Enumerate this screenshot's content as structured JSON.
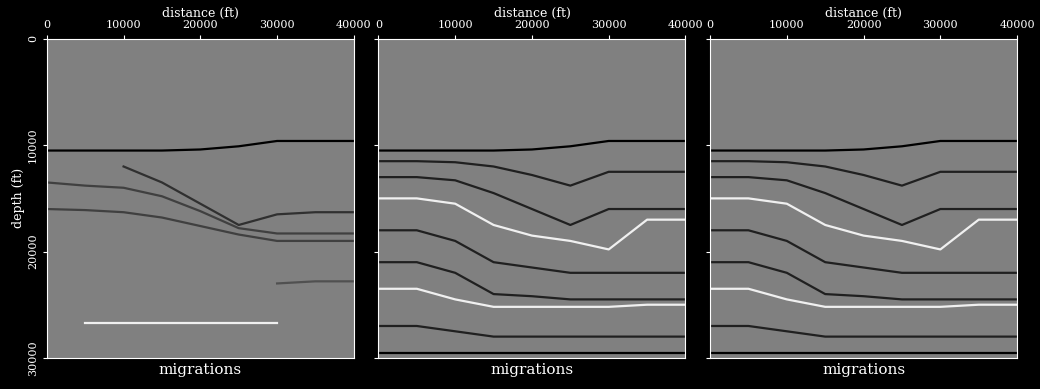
{
  "chart_data": [
    {
      "type": "line",
      "xlabel": "distance (ft)",
      "ylabel": "depth (ft)",
      "annotations": [
        "migrations"
      ],
      "x": [
        0,
        5000,
        10000,
        15000,
        20000,
        25000,
        30000,
        35000,
        40000
      ],
      "xlim": [
        0,
        40000
      ],
      "xticks": [
        0,
        10000,
        20000,
        30000,
        40000
      ],
      "ylim": [
        30000,
        0
      ],
      "yticks": [
        0,
        10000,
        20000,
        30000
      ],
      "series": [
        {
          "color": "#000000",
          "values": [
            10500,
            10500,
            10500,
            10500,
            10400,
            10100,
            9600,
            9600,
            9600
          ]
        },
        {
          "color": "#303030",
          "values": [
            null,
            null,
            12000,
            13500,
            15500,
            17500,
            16500,
            16300,
            16300
          ]
        },
        {
          "color": "#404040",
          "values": [
            13500,
            13800,
            14000,
            14800,
            16200,
            17800,
            18300,
            18300,
            18300
          ]
        },
        {
          "color": "#404040",
          "values": [
            16000,
            16100,
            16300,
            16800,
            17600,
            18400,
            19000,
            19000,
            19000
          ]
        },
        {
          "color": "#505050",
          "values": [
            null,
            null,
            null,
            null,
            null,
            null,
            23000,
            22800,
            22800
          ]
        },
        {
          "color": "#f0f0f0",
          "values": [
            null,
            26700,
            26700,
            26700,
            26700,
            26700,
            26700,
            null,
            null
          ]
        }
      ]
    },
    {
      "type": "line",
      "xlabel": "distance (ft)",
      "annotations": [
        "migrations"
      ],
      "tick_labels": "x",
      "x": [
        0,
        5000,
        10000,
        15000,
        20000,
        25000,
        30000,
        35000,
        40000
      ],
      "xlim": [
        0,
        40000
      ],
      "xticks": [
        0,
        10000,
        20000,
        30000,
        40000
      ],
      "ylim": [
        30000,
        0
      ],
      "yticks": [
        0,
        10000,
        20000,
        30000
      ],
      "series": [
        {
          "color": "#000000",
          "values": [
            10500,
            10500,
            10500,
            10500,
            10400,
            10100,
            9600,
            9600,
            9600
          ]
        },
        {
          "color": "#202020",
          "values": [
            11500,
            11500,
            11600,
            12000,
            12800,
            13800,
            12500,
            12500,
            12500
          ]
        },
        {
          "color": "#202020",
          "values": [
            13000,
            13000,
            13300,
            14500,
            16000,
            17500,
            16000,
            16000,
            16000
          ]
        },
        {
          "color": "#f0f0f0",
          "values": [
            15000,
            15000,
            15500,
            17500,
            18500,
            19000,
            19800,
            17000,
            17000
          ]
        },
        {
          "color": "#202020",
          "values": [
            18000,
            18000,
            19000,
            21000,
            21500,
            22000,
            22000,
            22000,
            22000
          ]
        },
        {
          "color": "#202020",
          "values": [
            21000,
            21000,
            22000,
            24000,
            24200,
            24500,
            24500,
            24500,
            24500
          ]
        },
        {
          "color": "#f0f0f0",
          "values": [
            23500,
            23500,
            24500,
            25200,
            25200,
            25200,
            25200,
            25000,
            25000
          ]
        },
        {
          "color": "#202020",
          "values": [
            27000,
            27000,
            27500,
            28000,
            28000,
            28000,
            28000,
            28000,
            28000
          ]
        },
        {
          "color": "#000000",
          "values": [
            29500,
            29500,
            29500,
            29500,
            29500,
            29500,
            29500,
            29500,
            29500
          ]
        }
      ]
    },
    {
      "type": "line",
      "xlabel": "distance (ft)",
      "annotations": [
        "migrations"
      ],
      "tick_labels": "x",
      "x": [
        0,
        5000,
        10000,
        15000,
        20000,
        25000,
        30000,
        35000,
        40000
      ],
      "xlim": [
        0,
        40000
      ],
      "xticks": [
        0,
        10000,
        20000,
        30000,
        40000
      ],
      "ylim": [
        30000,
        0
      ],
      "yticks": [
        0,
        10000,
        20000,
        30000
      ],
      "series": [
        {
          "color": "#000000",
          "values": [
            10500,
            10500,
            10500,
            10500,
            10400,
            10100,
            9600,
            9600,
            9600
          ]
        },
        {
          "color": "#202020",
          "values": [
            11500,
            11500,
            11600,
            12000,
            12800,
            13800,
            12500,
            12500,
            12500
          ]
        },
        {
          "color": "#202020",
          "values": [
            13000,
            13000,
            13300,
            14500,
            16000,
            17500,
            16000,
            16000,
            16000
          ]
        },
        {
          "color": "#f0f0f0",
          "values": [
            15000,
            15000,
            15500,
            17500,
            18500,
            19000,
            19800,
            17000,
            17000
          ]
        },
        {
          "color": "#202020",
          "values": [
            18000,
            18000,
            19000,
            21000,
            21500,
            22000,
            22000,
            22000,
            22000
          ]
        },
        {
          "color": "#202020",
          "values": [
            21000,
            21000,
            22000,
            24000,
            24200,
            24500,
            24500,
            24500,
            24500
          ]
        },
        {
          "color": "#f0f0f0",
          "values": [
            23500,
            23500,
            24500,
            25200,
            25200,
            25200,
            25200,
            25000,
            25000
          ]
        },
        {
          "color": "#202020",
          "values": [
            27000,
            27000,
            27500,
            28000,
            28000,
            28000,
            28000,
            28000,
            28000
          ]
        },
        {
          "color": "#000000",
          "values": [
            29500,
            29500,
            29500,
            29500,
            29500,
            29500,
            29500,
            29500,
            29500
          ]
        }
      ]
    }
  ]
}
